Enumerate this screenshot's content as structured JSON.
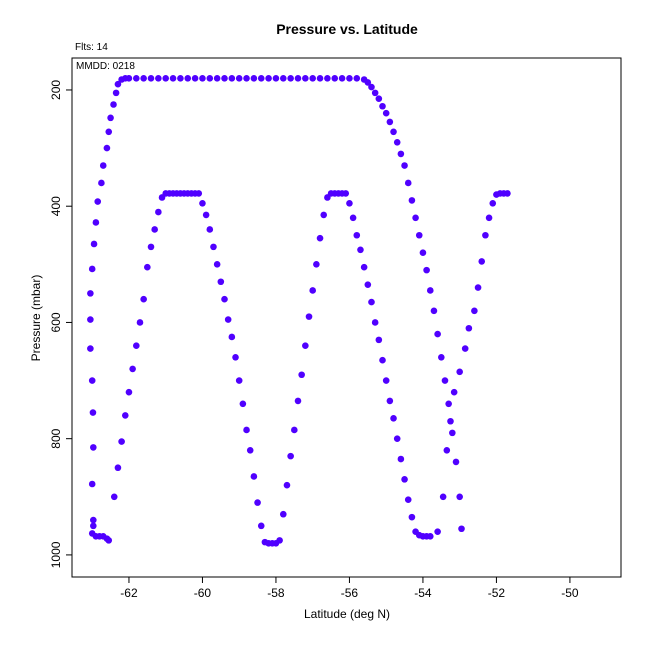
{
  "chart_data": {
    "type": "scatter",
    "title": "Pressure vs. Latitude",
    "annotations": [
      "Flts: 14",
      "MMDD: 0218"
    ],
    "x_label": "Latitude (deg N)",
    "y_label": "Pressure (mbar)",
    "color": "#5000ff",
    "xlim": [
      -63.55,
      -48.61
    ],
    "xticks": [
      -62,
      -60,
      -58,
      -56,
      -54,
      -52,
      -50
    ],
    "ylim": [
      1038,
      145
    ],
    "yticks": [
      200,
      400,
      600,
      800,
      1000
    ],
    "x": [
      -63.05,
      -63.05,
      -63.0,
      -62.98,
      -62.97,
      -63.0,
      -62.97,
      -62.97,
      -63.0,
      -62.9,
      -62.8,
      -62.7,
      -62.6,
      -62.55,
      -63.05,
      -63.0,
      -62.95,
      -62.9,
      -62.85,
      -62.75,
      -62.7,
      -62.6,
      -62.55,
      -62.5,
      -62.42,
      -62.35,
      -62.3,
      -62.2,
      -62.1,
      -62.0,
      -61.8,
      -61.6,
      -61.4,
      -61.2,
      -61.0,
      -60.8,
      -60.6,
      -60.4,
      -60.2,
      -60.0,
      -59.8,
      -59.6,
      -59.4,
      -59.2,
      -59.0,
      -58.8,
      -58.6,
      -58.4,
      -58.2,
      -58.0,
      -57.8,
      -57.6,
      -57.4,
      -57.2,
      -57.0,
      -56.8,
      -56.6,
      -56.4,
      -56.2,
      -56.0,
      -55.8,
      -55.6,
      -55.5,
      -55.4,
      -55.3,
      -55.2,
      -55.1,
      -55.0,
      -54.9,
      -54.8,
      -54.7,
      -54.6,
      -54.5,
      -54.4,
      -54.3,
      -54.2,
      -54.1,
      -54.0,
      -53.9,
      -53.8,
      -53.7,
      -53.6,
      -53.5,
      -53.4,
      -53.3,
      -53.2,
      -53.1,
      -53.0,
      -52.95,
      -62.4,
      -62.3,
      -62.2,
      -62.1,
      -62.0,
      -61.9,
      -61.8,
      -61.7,
      -61.6,
      -61.5,
      -61.4,
      -61.3,
      -61.2,
      -61.1,
      -61.0,
      -60.9,
      -60.8,
      -60.7,
      -60.6,
      -60.5,
      -60.4,
      -60.3,
      -60.2,
      -60.1,
      -60.0,
      -59.9,
      -59.8,
      -59.7,
      -59.6,
      -59.5,
      -59.4,
      -59.3,
      -59.2,
      -59.1,
      -59.0,
      -58.9,
      -58.8,
      -58.7,
      -58.6,
      -58.5,
      -58.4,
      -58.3,
      -58.2,
      -58.1,
      -58.0,
      -57.9,
      -57.8,
      -57.7,
      -57.6,
      -57.5,
      -57.4,
      -57.3,
      -57.2,
      -57.1,
      -57.0,
      -56.9,
      -56.8,
      -56.7,
      -56.6,
      -56.5,
      -56.4,
      -56.3,
      -56.2,
      -56.1,
      -56.0,
      -55.9,
      -55.8,
      -55.7,
      -55.6,
      -55.5,
      -55.4,
      -55.3,
      -55.2,
      -55.1,
      -55.0,
      -54.9,
      -54.8,
      -54.7,
      -54.6,
      -54.5,
      -54.4,
      -54.3,
      -54.2,
      -54.1,
      -54.0,
      -53.9,
      -53.8,
      -53.6,
      -53.45,
      -53.35,
      -53.25,
      -53.15,
      -53.0,
      -52.85,
      -52.75,
      -52.6,
      -52.5,
      -52.4,
      -52.3,
      -52.2,
      -52.1,
      -52.0,
      -51.9,
      -51.8,
      -51.7
    ],
    "values": [
      595,
      645,
      700,
      755,
      815,
      878,
      940,
      950,
      963,
      968,
      968,
      968,
      972,
      975,
      550,
      508,
      465,
      428,
      392,
      360,
      330,
      300,
      272,
      248,
      225,
      205,
      190,
      182,
      180,
      180,
      180,
      180,
      180,
      180,
      180,
      180,
      180,
      180,
      180,
      180,
      180,
      180,
      180,
      180,
      180,
      180,
      180,
      180,
      180,
      180,
      180,
      180,
      180,
      180,
      180,
      180,
      180,
      180,
      180,
      180,
      180,
      182,
      187,
      195,
      205,
      215,
      228,
      240,
      255,
      272,
      290,
      310,
      330,
      360,
      390,
      420,
      450,
      480,
      510,
      545,
      580,
      620,
      660,
      700,
      740,
      790,
      840,
      900,
      955,
      900,
      850,
      805,
      760,
      720,
      680,
      640,
      600,
      560,
      505,
      470,
      440,
      410,
      385,
      378,
      378,
      378,
      378,
      378,
      378,
      378,
      378,
      378,
      378,
      395,
      415,
      440,
      470,
      500,
      530,
      560,
      595,
      625,
      660,
      700,
      740,
      785,
      820,
      865,
      910,
      950,
      978,
      980,
      980,
      980,
      975,
      930,
      880,
      830,
      785,
      735,
      690,
      640,
      590,
      545,
      500,
      455,
      415,
      385,
      378,
      378,
      378,
      378,
      378,
      395,
      420,
      450,
      475,
      505,
      535,
      565,
      600,
      630,
      665,
      700,
      735,
      765,
      800,
      835,
      870,
      905,
      935,
      960,
      966,
      968,
      968,
      968,
      960,
      900,
      820,
      770,
      720,
      685,
      645,
      610,
      580,
      540,
      495,
      450,
      420,
      395,
      380,
      378,
      378,
      378
    ]
  }
}
